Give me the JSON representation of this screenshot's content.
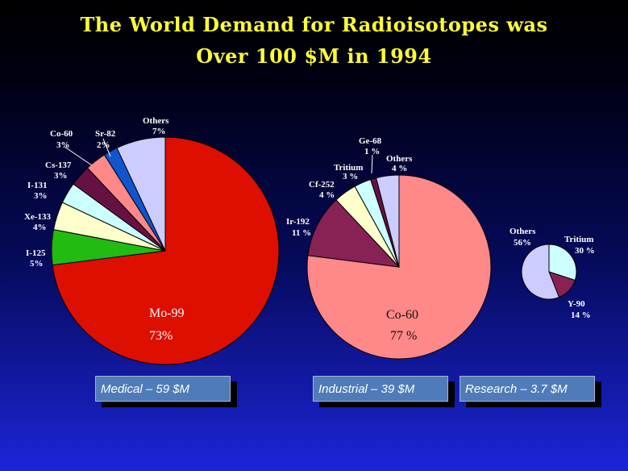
{
  "title_line1": "The World Demand for Radioisotopes was",
  "title_line2": "Over 100 $M in 1994",
  "chart_data": [
    {
      "type": "pie",
      "title": "Medical – 59 $M",
      "slices": [
        {
          "label": "Mo-99",
          "value": 73,
          "pct": "73%",
          "color": "#dd0f00"
        },
        {
          "label": "I-125",
          "value": 5,
          "pct": "5%",
          "color": "#22bb11"
        },
        {
          "label": "Xe-133",
          "value": 4,
          "pct": "4%",
          "color": "#ffffcc"
        },
        {
          "label": "I-131",
          "value": 3,
          "pct": "3%",
          "color": "#ccffff"
        },
        {
          "label": "Cs-137",
          "value": 3,
          "pct": "3%",
          "color": "#661144"
        },
        {
          "label": "Co-60",
          "value": 3,
          "pct": "3%",
          "color": "#ff8888"
        },
        {
          "label": "Sr-82",
          "value": 2,
          "pct": "2%",
          "color": "#1155cc"
        },
        {
          "label": "Others",
          "value": 7,
          "pct": "7%",
          "color": "#ccccff"
        }
      ]
    },
    {
      "type": "pie",
      "title": "Industrial – 39 $M",
      "slices": [
        {
          "label": "Co-60",
          "value": 77,
          "pct": "77 %",
          "color": "#ff8888"
        },
        {
          "label": "Ir-192",
          "value": 11,
          "pct": "11 %",
          "color": "#882255"
        },
        {
          "label": "Cf-252",
          "value": 4,
          "pct": "4 %",
          "color": "#ffffcc"
        },
        {
          "label": "Tritium",
          "value": 3,
          "pct": "3 %",
          "color": "#ccffff"
        },
        {
          "label": "Ge-68",
          "value": 1,
          "pct": "1 %",
          "color": "#661144"
        },
        {
          "label": "Others",
          "value": 4,
          "pct": "4 %",
          "color": "#ccccff"
        }
      ]
    },
    {
      "type": "pie",
      "title": "Research – 3.7 $M",
      "slices": [
        {
          "label": "Tritium",
          "value": 30,
          "pct": "30 %",
          "color": "#ccffff"
        },
        {
          "label": "Y-90",
          "value": 14,
          "pct": "14 %",
          "color": "#882255"
        },
        {
          "label": "Others",
          "value": 56,
          "pct": "56 %",
          "color": "#ccccff"
        }
      ]
    }
  ],
  "labels": {
    "medical": {
      "mo99_name": "Mo-99",
      "mo99_pct": "73%",
      "i125_name": "I-125",
      "i125_pct": "5%",
      "xe133_name": "Xe-133",
      "xe133_pct": "4%",
      "i131_name": "I-131",
      "i131_pct": "3%",
      "cs137_name": "Cs-137",
      "cs137_pct": "3%",
      "co60_name": "Co-60",
      "co60_pct": "3%",
      "sr82_name": "Sr-82",
      "sr82_pct": "2%",
      "others_name": "Others",
      "others_pct": "7%"
    },
    "industrial": {
      "co60_name": "Co-60",
      "co60_pct": "77 %",
      "ir192_name": "Ir-192",
      "ir192_pct": "11 %",
      "cf252_name": "Cf-252",
      "cf252_pct": "4 %",
      "tritium_name": "Tritium",
      "tritium_pct": "3 %",
      "ge68_name": "Ge-68",
      "ge68_pct": "1 %",
      "others_name": "Others",
      "others_pct": "4 %"
    },
    "research": {
      "others_name": "Others",
      "others_pct": "56%",
      "tritium_name": "Tritium",
      "tritium_pct": "30 %",
      "y90_name": "Y-90",
      "y90_pct": "14 %"
    }
  },
  "boxes": {
    "medical": "Medical – 59 $M",
    "industrial": "Industrial – 39 $M",
    "research": "Research – 3.7 $M"
  }
}
